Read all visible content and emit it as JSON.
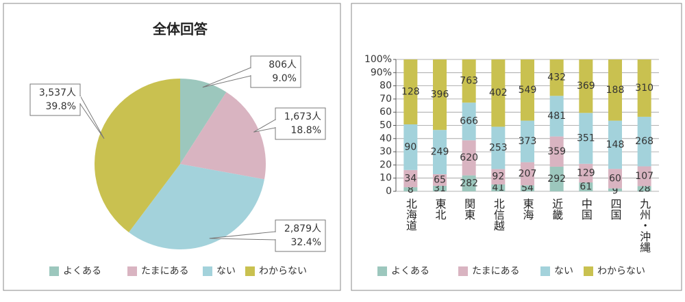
{
  "chart_data": [
    {
      "type": "pie",
      "title": "全体回答",
      "categories": [
        "よくある",
        "たまにある",
        "ない",
        "わからない"
      ],
      "values": [
        806,
        1673,
        2879,
        3537
      ],
      "value_labels": [
        "806人",
        "1,673人",
        "2,879人",
        "3,537人"
      ],
      "percents": [
        9.0,
        18.8,
        32.4,
        39.8
      ],
      "percent_labels": [
        "9.0%",
        "18.8%",
        "32.4%",
        "39.8%"
      ],
      "colors": [
        "#9cc7bd",
        "#d9b4c1",
        "#a3d2db",
        "#c9c150"
      ]
    },
    {
      "type": "stacked_bar_100",
      "categories": [
        "北海道",
        "東北",
        "関東",
        "北信越",
        "東海",
        "近畿",
        "中国",
        "四国",
        "九州・沖縄"
      ],
      "series": [
        {
          "name": "よくある",
          "color": "#9cc7bd",
          "values": [
            8,
            31,
            282,
            41,
            54,
            292,
            61,
            9,
            28
          ]
        },
        {
          "name": "たまにある",
          "color": "#d9b4c1",
          "values": [
            34,
            65,
            620,
            92,
            207,
            359,
            129,
            60,
            107
          ]
        },
        {
          "name": "ない",
          "color": "#a3d2db",
          "values": [
            90,
            249,
            666,
            253,
            373,
            481,
            351,
            148,
            268
          ]
        },
        {
          "name": "わからない",
          "color": "#c9c150",
          "values": [
            128,
            396,
            763,
            402,
            549,
            432,
            369,
            188,
            310
          ]
        }
      ],
      "ylim": [
        0,
        100
      ],
      "yticks": [
        0,
        10,
        20,
        30,
        40,
        50,
        60,
        70,
        80,
        {
          "value": 90,
          "label": "90%"
        },
        {
          "value": 100,
          "label": "100%"
        }
      ],
      "grid": true
    }
  ]
}
